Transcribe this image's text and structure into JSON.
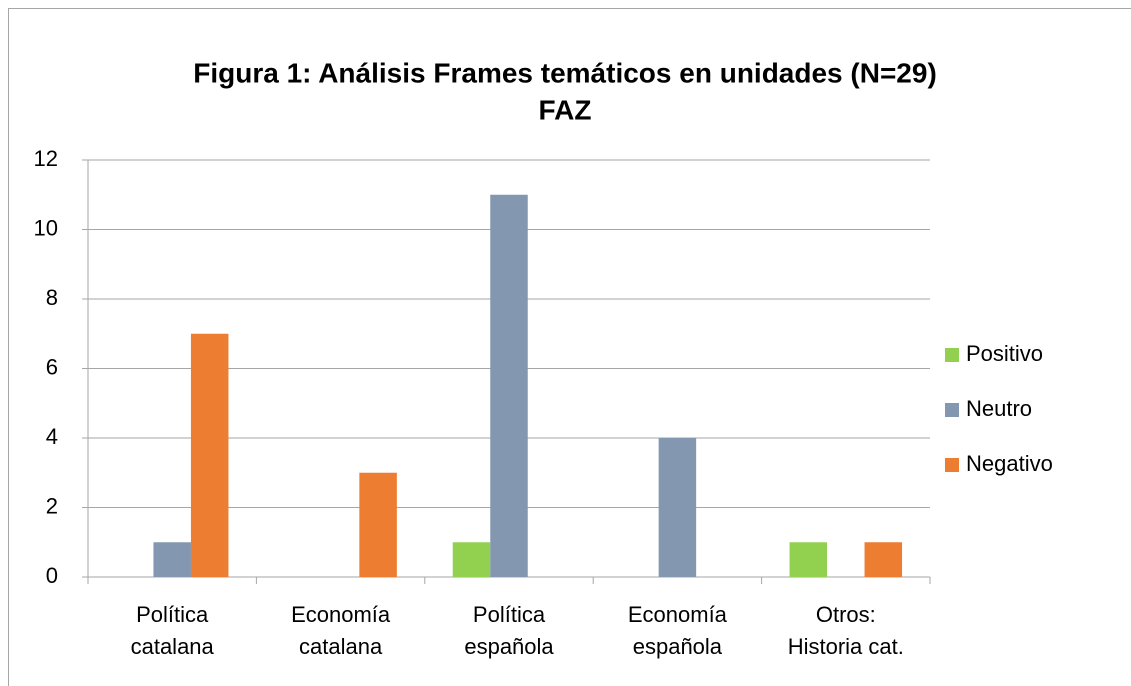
{
  "chart_data": {
    "type": "bar",
    "title": [
      "Figura 1: Análisis Frames temáticos en unidades (N=29)",
      "FAZ"
    ],
    "categories": [
      "Política\ncatalana",
      "Economía\ncatalana",
      "Política\nespañola",
      "Economía\nespañola",
      "Otros:\nHistoria cat."
    ],
    "series": [
      {
        "name": "Positivo",
        "color": "#92d050",
        "values": [
          0,
          0,
          1,
          0,
          1
        ]
      },
      {
        "name": "Neutro",
        "color": "#8497b0",
        "values": [
          1,
          0,
          11,
          4,
          0
        ]
      },
      {
        "name": "Negativo",
        "color": "#ed7d31",
        "values": [
          7,
          3,
          0,
          0,
          1
        ]
      }
    ],
    "ylim": [
      0,
      12
    ],
    "yticks": [
      0,
      2,
      4,
      6,
      8,
      10,
      12
    ],
    "grid": true,
    "legend": "right"
  }
}
